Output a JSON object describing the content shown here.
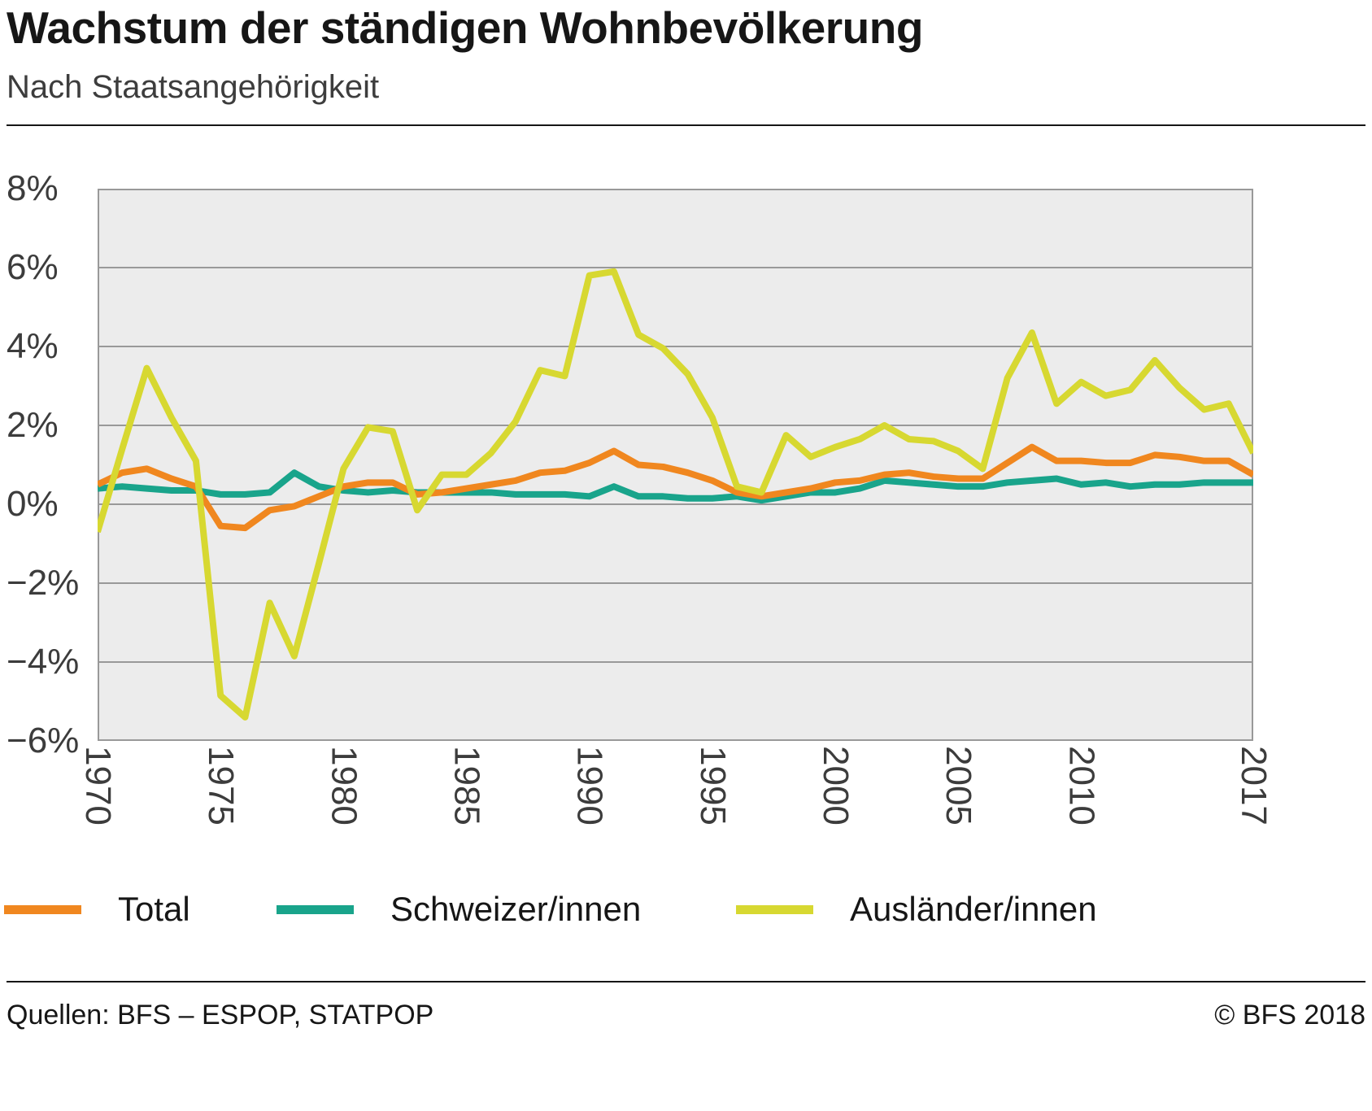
{
  "header": {
    "title": "Wachstum der ständigen Wohnbevölkerung",
    "subtitle": "Nach Staatsangehörigkeit"
  },
  "legend": {
    "items": [
      {
        "id": "total",
        "label": "Total",
        "color": "#f0871f"
      },
      {
        "id": "schweizer",
        "label": "Schweizer/innen",
        "color": "#19a48b"
      },
      {
        "id": "auslaender",
        "label": "Ausländer/innen",
        "color": "#d7d831"
      }
    ]
  },
  "footer": {
    "sources": "Quellen: BFS – ESPOP, STATPOP",
    "copyright": "© BFS 2018"
  },
  "chart_data": {
    "type": "line",
    "title": "Wachstum der ständigen Wohnbevölkerung",
    "subtitle": "Nach Staatsangehörigkeit",
    "xlabel": "",
    "ylabel": "",
    "xlim": [
      1970,
      2017
    ],
    "ylim": [
      -6,
      8
    ],
    "grid": "horizontal",
    "legend_position": "bottom",
    "plot_background": "#ececec",
    "gridline_color": "#999999",
    "x_ticks": [
      1970,
      1975,
      1980,
      1985,
      1990,
      1995,
      2000,
      2005,
      2010,
      2017
    ],
    "x_tick_labels": [
      "1970",
      "1975",
      "1980",
      "1985",
      "1990",
      "1995",
      "2000",
      "2005",
      "2010",
      "2017"
    ],
    "y_ticks": [
      8,
      6,
      4,
      2,
      0,
      -2,
      -4,
      -6
    ],
    "y_tick_labels": [
      "8%",
      "6%",
      "4%",
      "2%",
      "0%",
      "−2%",
      "−4%",
      "−6%"
    ],
    "years": [
      1970,
      1971,
      1972,
      1973,
      1974,
      1975,
      1976,
      1977,
      1978,
      1979,
      1980,
      1981,
      1982,
      1983,
      1984,
      1985,
      1986,
      1987,
      1988,
      1989,
      1990,
      1991,
      1992,
      1993,
      1994,
      1995,
      1996,
      1997,
      1998,
      1999,
      2000,
      2001,
      2002,
      2003,
      2004,
      2005,
      2006,
      2007,
      2008,
      2009,
      2010,
      2011,
      2012,
      2013,
      2014,
      2015,
      2016,
      2017
    ],
    "series": [
      {
        "name": "Total",
        "color": "#f0871f",
        "unit": "%",
        "values": [
          0.5,
          0.8,
          0.9,
          0.65,
          0.45,
          -0.55,
          -0.6,
          -0.15,
          -0.05,
          0.2,
          0.45,
          0.55,
          0.55,
          0.25,
          0.3,
          0.4,
          0.5,
          0.6,
          0.8,
          0.85,
          1.05,
          1.35,
          1.0,
          0.95,
          0.8,
          0.6,
          0.3,
          0.2,
          0.3,
          0.4,
          0.55,
          0.6,
          0.75,
          0.8,
          0.7,
          0.65,
          0.65,
          1.05,
          1.45,
          1.1,
          1.1,
          1.05,
          1.05,
          1.25,
          1.2,
          1.1,
          1.1,
          0.75
        ]
      },
      {
        "name": "Schweizer/innen",
        "color": "#19a48b",
        "unit": "%",
        "values": [
          0.4,
          0.45,
          0.4,
          0.35,
          0.35,
          0.25,
          0.25,
          0.3,
          0.8,
          0.45,
          0.35,
          0.3,
          0.35,
          0.3,
          0.3,
          0.3,
          0.3,
          0.25,
          0.25,
          0.25,
          0.2,
          0.45,
          0.2,
          0.2,
          0.15,
          0.15,
          0.2,
          0.1,
          0.2,
          0.3,
          0.3,
          0.4,
          0.6,
          0.55,
          0.5,
          0.45,
          0.45,
          0.55,
          0.6,
          0.65,
          0.5,
          0.55,
          0.45,
          0.5,
          0.5,
          0.55,
          0.55,
          0.55
        ]
      },
      {
        "name": "Ausländer/innen",
        "color": "#d7d831",
        "unit": "%",
        "values": [
          -0.7,
          1.4,
          3.45,
          2.2,
          1.1,
          -4.85,
          -5.4,
          -2.5,
          -3.85,
          -1.5,
          0.9,
          1.95,
          1.85,
          -0.15,
          0.75,
          0.75,
          1.3,
          2.1,
          3.4,
          3.25,
          5.8,
          5.9,
          4.3,
          3.95,
          3.3,
          2.2,
          0.45,
          0.3,
          1.75,
          1.2,
          1.45,
          1.65,
          2.0,
          1.65,
          1.6,
          1.35,
          0.9,
          3.2,
          4.35,
          2.55,
          3.1,
          2.75,
          2.9,
          3.65,
          2.95,
          2.4,
          2.55,
          1.3
        ]
      }
    ]
  }
}
